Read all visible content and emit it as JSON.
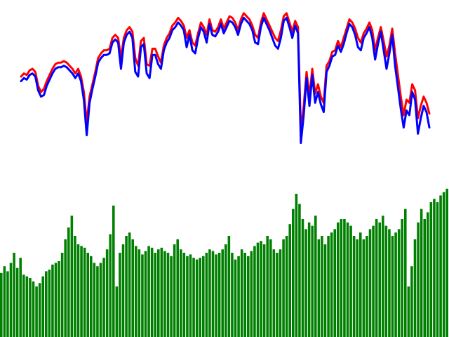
{
  "chart_data": [
    {
      "type": "line",
      "title": "",
      "xlabel": "",
      "ylabel": "",
      "grid": false,
      "legend": "none",
      "x_index_range": [
        0,
        143
      ],
      "ylim": [
        0,
        100
      ],
      "series": [
        {
          "color": "#ff0000",
          "values": [
            55,
            57,
            56,
            59,
            60,
            58,
            49,
            45,
            47,
            52,
            56,
            60,
            63,
            64,
            64,
            65,
            64,
            62,
            60,
            57,
            60,
            55,
            45,
            25,
            42,
            50,
            58,
            67,
            70,
            72,
            72,
            73,
            80,
            82,
            80,
            67,
            80,
            85,
            87,
            84,
            67,
            62,
            78,
            80,
            63,
            62,
            73,
            73,
            68,
            64,
            75,
            80,
            83,
            88,
            90,
            93,
            91,
            88,
            80,
            85,
            77,
            75,
            83,
            90,
            87,
            82,
            92,
            85,
            84,
            87,
            92,
            86,
            90,
            94,
            93,
            90,
            85,
            92,
            96,
            94,
            92,
            88,
            82,
            80,
            90,
            96,
            92,
            88,
            84,
            80,
            78,
            85,
            94,
            96,
            90,
            84,
            91,
            87,
            20,
            36,
            58,
            42,
            60,
            44,
            50,
            42,
            38,
            62,
            65,
            71,
            72,
            78,
            74,
            80,
            86,
            92,
            90,
            86,
            80,
            77,
            83,
            86,
            90,
            85,
            72,
            80,
            87,
            78,
            68,
            75,
            86,
            70,
            56,
            42,
            30,
            40,
            38,
            50,
            46,
            28,
            36,
            42,
            38,
            31
          ]
        },
        {
          "color": "#0000ff",
          "values": [
            52,
            54,
            53,
            56,
            57,
            55,
            46,
            42,
            43,
            49,
            53,
            57,
            60,
            61,
            61,
            62,
            61,
            59,
            57,
            54,
            57,
            52,
            40,
            17,
            38,
            47,
            55,
            64,
            67,
            69,
            69,
            70,
            77,
            79,
            77,
            60,
            77,
            82,
            84,
            80,
            58,
            55,
            74,
            76,
            57,
            54,
            69,
            69,
            63,
            60,
            72,
            77,
            80,
            85,
            87,
            90,
            88,
            85,
            74,
            82,
            72,
            70,
            80,
            87,
            84,
            77,
            89,
            82,
            81,
            84,
            89,
            83,
            87,
            91,
            90,
            87,
            82,
            89,
            93,
            91,
            89,
            85,
            77,
            76,
            87,
            93,
            89,
            85,
            80,
            75,
            73,
            80,
            91,
            93,
            87,
            80,
            88,
            83,
            12,
            30,
            54,
            36,
            56,
            38,
            45,
            37,
            32,
            58,
            62,
            68,
            69,
            75,
            71,
            76,
            83,
            89,
            87,
            82,
            74,
            72,
            80,
            83,
            87,
            80,
            66,
            76,
            84,
            72,
            60,
            70,
            82,
            62,
            48,
            34,
            22,
            33,
            30,
            45,
            40,
            18,
            28,
            36,
            32,
            22
          ]
        }
      ]
    },
    {
      "type": "bar",
      "title": "",
      "xlabel": "",
      "ylabel": "",
      "grid": false,
      "legend": "none",
      "ylim": [
        0,
        100
      ],
      "color": "#008000",
      "values": [
        38,
        42,
        39,
        44,
        50,
        41,
        47,
        37,
        36,
        35,
        33,
        30,
        32,
        36,
        39,
        40,
        43,
        44,
        45,
        50,
        58,
        65,
        72,
        60,
        55,
        54,
        53,
        50,
        48,
        44,
        42,
        44,
        47,
        52,
        61,
        78,
        30,
        50,
        55,
        60,
        62,
        58,
        54,
        52,
        49,
        51,
        54,
        53,
        50,
        52,
        53,
        51,
        50,
        48,
        55,
        58,
        52,
        50,
        48,
        49,
        47,
        46,
        47,
        48,
        50,
        52,
        51,
        49,
        50,
        52,
        55,
        60,
        50,
        46,
        48,
        52,
        50,
        48,
        51,
        54,
        56,
        57,
        55,
        60,
        58,
        52,
        50,
        52,
        58,
        60,
        67,
        76,
        85,
        79,
        70,
        64,
        68,
        66,
        72,
        58,
        60,
        55,
        60,
        62,
        64,
        68,
        70,
        70,
        68,
        66,
        60,
        58,
        62,
        58,
        60,
        64,
        66,
        70,
        68,
        72,
        66,
        64,
        60,
        62,
        64,
        70,
        76,
        30,
        42,
        58,
        68,
        76,
        70,
        74,
        80,
        82,
        80,
        84,
        86,
        88
      ]
    }
  ]
}
